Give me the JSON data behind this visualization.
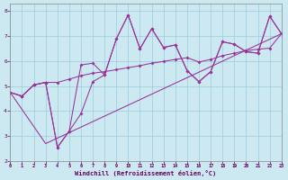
{
  "xlabel": "Windchill (Refroidissement éolien,°C)",
  "background_color": "#cce8f0",
  "grid_color": "#99cce0",
  "line_color": "#993399",
  "xlim": [
    0,
    23
  ],
  "ylim": [
    2,
    8.3
  ],
  "xticks": [
    0,
    1,
    2,
    3,
    4,
    5,
    6,
    7,
    8,
    9,
    10,
    11,
    12,
    13,
    14,
    15,
    16,
    17,
    18,
    19,
    20,
    21,
    22,
    23
  ],
  "yticks": [
    2,
    3,
    4,
    5,
    6,
    7,
    8
  ],
  "line1_x": [
    0,
    1,
    2,
    3,
    4,
    5,
    6,
    7,
    8,
    9,
    10,
    11,
    12,
    13,
    14,
    15,
    16,
    17,
    18,
    19,
    20,
    21,
    22,
    23
  ],
  "line1_y": [
    4.75,
    4.6,
    5.05,
    5.15,
    5.15,
    5.28,
    5.42,
    5.52,
    5.58,
    5.66,
    5.74,
    5.82,
    5.92,
    5.99,
    6.07,
    6.14,
    5.97,
    6.07,
    6.22,
    6.32,
    6.42,
    6.48,
    6.52,
    7.1
  ],
  "line2_x": [
    0,
    1,
    2,
    3,
    4,
    5,
    6,
    7,
    8,
    9,
    10,
    11,
    12,
    13,
    14,
    15,
    16,
    17,
    18,
    19,
    20,
    21,
    22,
    23
  ],
  "line2_y": [
    4.75,
    4.6,
    5.05,
    5.15,
    2.55,
    3.2,
    5.85,
    5.92,
    5.45,
    6.9,
    7.85,
    6.5,
    7.3,
    6.55,
    6.65,
    5.62,
    5.18,
    5.58,
    6.78,
    6.68,
    6.38,
    6.32,
    7.8,
    7.1
  ],
  "line3_x": [
    0,
    1,
    2,
    3,
    4,
    5,
    6,
    7,
    8,
    9,
    10,
    11,
    12,
    13,
    14,
    15,
    16,
    17,
    18,
    19,
    20,
    21,
    22,
    23
  ],
  "line3_y": [
    4.75,
    4.6,
    5.05,
    5.15,
    2.55,
    3.2,
    3.9,
    5.18,
    5.45,
    6.9,
    7.85,
    6.5,
    7.3,
    6.55,
    6.65,
    5.62,
    5.18,
    5.58,
    6.78,
    6.68,
    6.38,
    6.32,
    7.8,
    7.1
  ],
  "line4_x": [
    0,
    3,
    23
  ],
  "line4_y": [
    4.75,
    2.7,
    7.1
  ]
}
